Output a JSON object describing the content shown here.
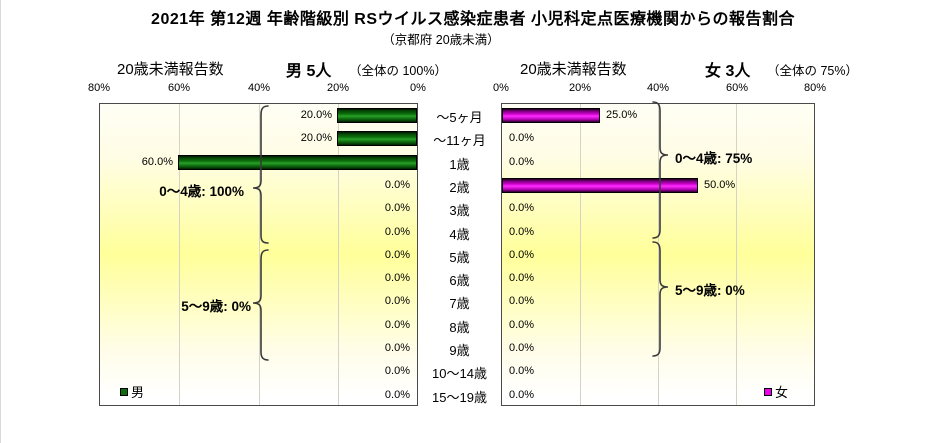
{
  "title": "2021年 第12週 年齢階級別 RSウイルス感染症患者 小児科定点医療機関からの報告割合",
  "subtitle": "（京都府 20歳未満）",
  "colors": {
    "male_bar": "#0c6e0c",
    "female_bar": "#e800e8",
    "plot_gradient_peak": "#ffff9a",
    "gridline": "#d4d4c6",
    "frame": "#4a4a4a"
  },
  "left_chart": {
    "header_label": "20歳未満報告数",
    "group_label": "男 5人",
    "share_label": "（全体の 100%）",
    "axis_ticks": [
      "80%",
      "60%",
      "40%",
      "20%",
      "0%"
    ],
    "legend_label": "男",
    "annotations": [
      {
        "text": "0～4歳: 100%"
      },
      {
        "text": "5～9歳: 0%"
      }
    ]
  },
  "right_chart": {
    "header_label": "20歳未満報告数",
    "group_label": "女 3人",
    "share_label": "（全体の 75%）",
    "axis_ticks": [
      "0%",
      "20%",
      "40%",
      "60%",
      "80%"
    ],
    "legend_label": "女",
    "annotations": [
      {
        "text": "0～4歳: 75%"
      },
      {
        "text": "5～9歳: 0%"
      }
    ]
  },
  "chart_data": {
    "type": "bar",
    "orientation": "horizontal-pyramid",
    "title": "2021年 第12週 年齢階級別 RSウイルス感染症患者 小児科定点医療機関からの報告割合",
    "subtitle": "（京都府 20歳未満）",
    "categories": [
      "～5ヶ月",
      "～11ヶ月",
      "1歳",
      "2歳",
      "3歳",
      "4歳",
      "5歳",
      "6歳",
      "7歳",
      "8歳",
      "9歳",
      "10～14歳",
      "15～19歳"
    ],
    "xlim": [
      0,
      80
    ],
    "axis_unit": "%",
    "grid": true,
    "series": [
      {
        "name": "男",
        "side": "left",
        "total_label": "男 5人（全体の 100%）",
        "values": [
          20.0,
          20.0,
          60.0,
          0.0,
          0.0,
          0.0,
          0.0,
          0.0,
          0.0,
          0.0,
          0.0,
          0.0,
          0.0
        ],
        "labels": [
          "20.0%",
          "20.0%",
          "60.0%",
          "0.0%",
          "0.0%",
          "0.0%",
          "0.0%",
          "0.0%",
          "0.0%",
          "0.0%",
          "0.0%",
          "0.0%",
          "0.0%"
        ]
      },
      {
        "name": "女",
        "side": "right",
        "total_label": "女 3人（全体の 75%）",
        "values": [
          25.0,
          0.0,
          0.0,
          50.0,
          0.0,
          0.0,
          0.0,
          0.0,
          0.0,
          0.0,
          0.0,
          0.0,
          0.0
        ],
        "labels": [
          "25.0%",
          "0.0%",
          "0.0%",
          "50.0%",
          "0.0%",
          "0.0%",
          "0.0%",
          "0.0%",
          "0.0%",
          "0.0%",
          "0.0%",
          "0.0%",
          "0.0%"
        ]
      }
    ]
  }
}
